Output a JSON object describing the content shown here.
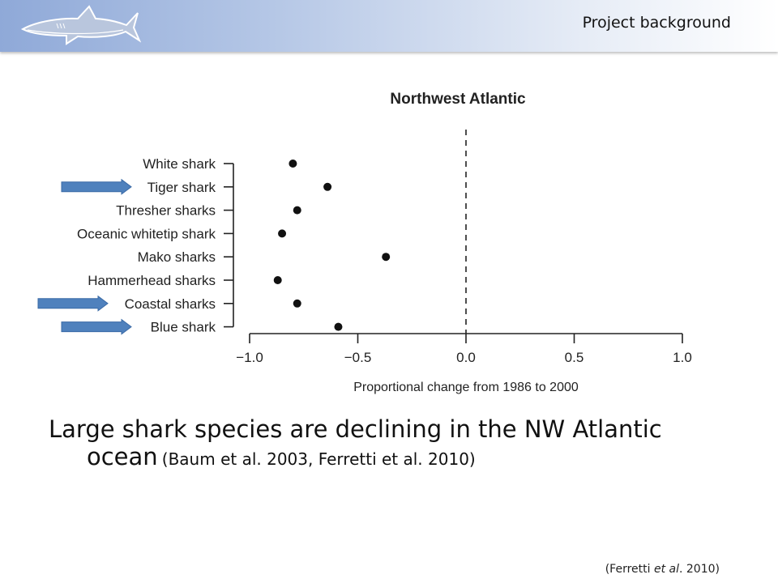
{
  "header": {
    "title": "Project background",
    "logo_icon": "shark-logo-icon",
    "gradient_colors": [
      "#8fa9d8",
      "#ffffff"
    ]
  },
  "chart_data": {
    "type": "scatter",
    "title": "Northwest Atlantic",
    "xlabel": "Proportional change from 1986 to 2000",
    "ylabel": "",
    "xlim": [
      -1.0,
      1.0
    ],
    "xticks": [
      "−1.0",
      "−0.5",
      "0.0",
      "0.5",
      "1.0"
    ],
    "xtick_values": [
      -1.0,
      -0.5,
      0.0,
      0.5,
      1.0
    ],
    "reference_line": 0.0,
    "grid": false,
    "categories": [
      "White shark",
      "Tiger shark",
      "Thresher sharks",
      "Oceanic whitetip shark",
      "Mako sharks",
      "Hammerhead sharks",
      "Coastal sharks",
      "Blue shark"
    ],
    "values": [
      -0.8,
      -0.64,
      -0.78,
      -0.85,
      -0.37,
      -0.87,
      -0.78,
      -0.59
    ],
    "highlighted": [
      "Tiger shark",
      "Coastal sharks",
      "Blue shark"
    ],
    "arrow_color": "#4f81bd",
    "point_color": "#111111"
  },
  "caption": {
    "line1": "Large shark species are declining in the NW Atlantic",
    "line2_main": "ocean",
    "line2_ref": "(Baum et al. 2003, Ferretti et al. 2010)"
  },
  "source": {
    "prefix": "(Ferretti ",
    "italic": "et al",
    "suffix": ". 2010)"
  }
}
